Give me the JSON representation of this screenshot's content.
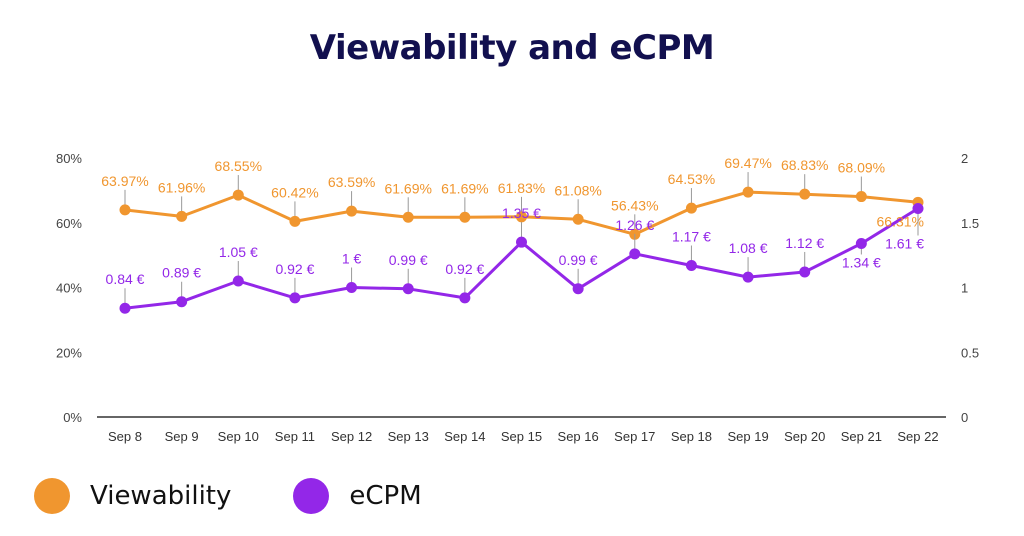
{
  "chart_data": {
    "type": "line",
    "title": "Viewability and eCPM",
    "categories": [
      "Sep 8",
      "Sep 9",
      "Sep 10",
      "Sep 11",
      "Sep 12",
      "Sep 13",
      "Sep 14",
      "Sep 15",
      "Sep 16",
      "Sep 17",
      "Sep 18",
      "Sep 19",
      "Sep 20",
      "Sep 21",
      "Sep 22"
    ],
    "series": [
      {
        "name": "Viewability",
        "axis": "left",
        "color": "#f0962f",
        "values": [
          63.97,
          61.96,
          68.55,
          60.42,
          63.59,
          61.69,
          61.69,
          61.83,
          61.08,
          56.43,
          64.53,
          69.47,
          68.83,
          68.09,
          66.31
        ],
        "labels": [
          "63.97%",
          "61.96%",
          "68.55%",
          "60.42%",
          "63.59%",
          "61.69%",
          "61.69%",
          "61.83%",
          "61.08%",
          "56.43%",
          "64.53%",
          "69.47%",
          "68.83%",
          "68.09%",
          "66.31%"
        ]
      },
      {
        "name": "eCPM",
        "axis": "right",
        "color": "#9327e8",
        "values": [
          0.84,
          0.89,
          1.05,
          0.92,
          1.0,
          0.99,
          0.92,
          1.35,
          0.99,
          1.26,
          1.17,
          1.08,
          1.12,
          1.34,
          1.61
        ],
        "labels": [
          "0.84 €",
          "0.89 €",
          "1.05 €",
          "0.92 €",
          "1 €",
          "0.99 €",
          "0.92 €",
          "1.35 €",
          "0.99 €",
          "1.26 €",
          "1.17 €",
          "1.08 €",
          "1.12 €",
          "1.34 €",
          "1.61 €"
        ]
      }
    ],
    "y_left": {
      "ylim": [
        0,
        80
      ],
      "ticks": [
        "0%",
        "20%",
        "40%",
        "60%",
        "80%"
      ],
      "tick_values": [
        0,
        20,
        40,
        60,
        80
      ]
    },
    "y_right": {
      "ylim": [
        0,
        2
      ],
      "ticks": [
        "0",
        "0.5",
        "1",
        "1.5",
        "2"
      ],
      "tick_values": [
        0,
        0.5,
        1,
        1.5,
        2
      ]
    },
    "xlabel": "",
    "ylabel": "",
    "grid": false,
    "legend_position": "bottom-left"
  },
  "legend": [
    {
      "label": "Viewability",
      "color": "#f0962f"
    },
    {
      "label": "eCPM",
      "color": "#9327e8"
    }
  ]
}
